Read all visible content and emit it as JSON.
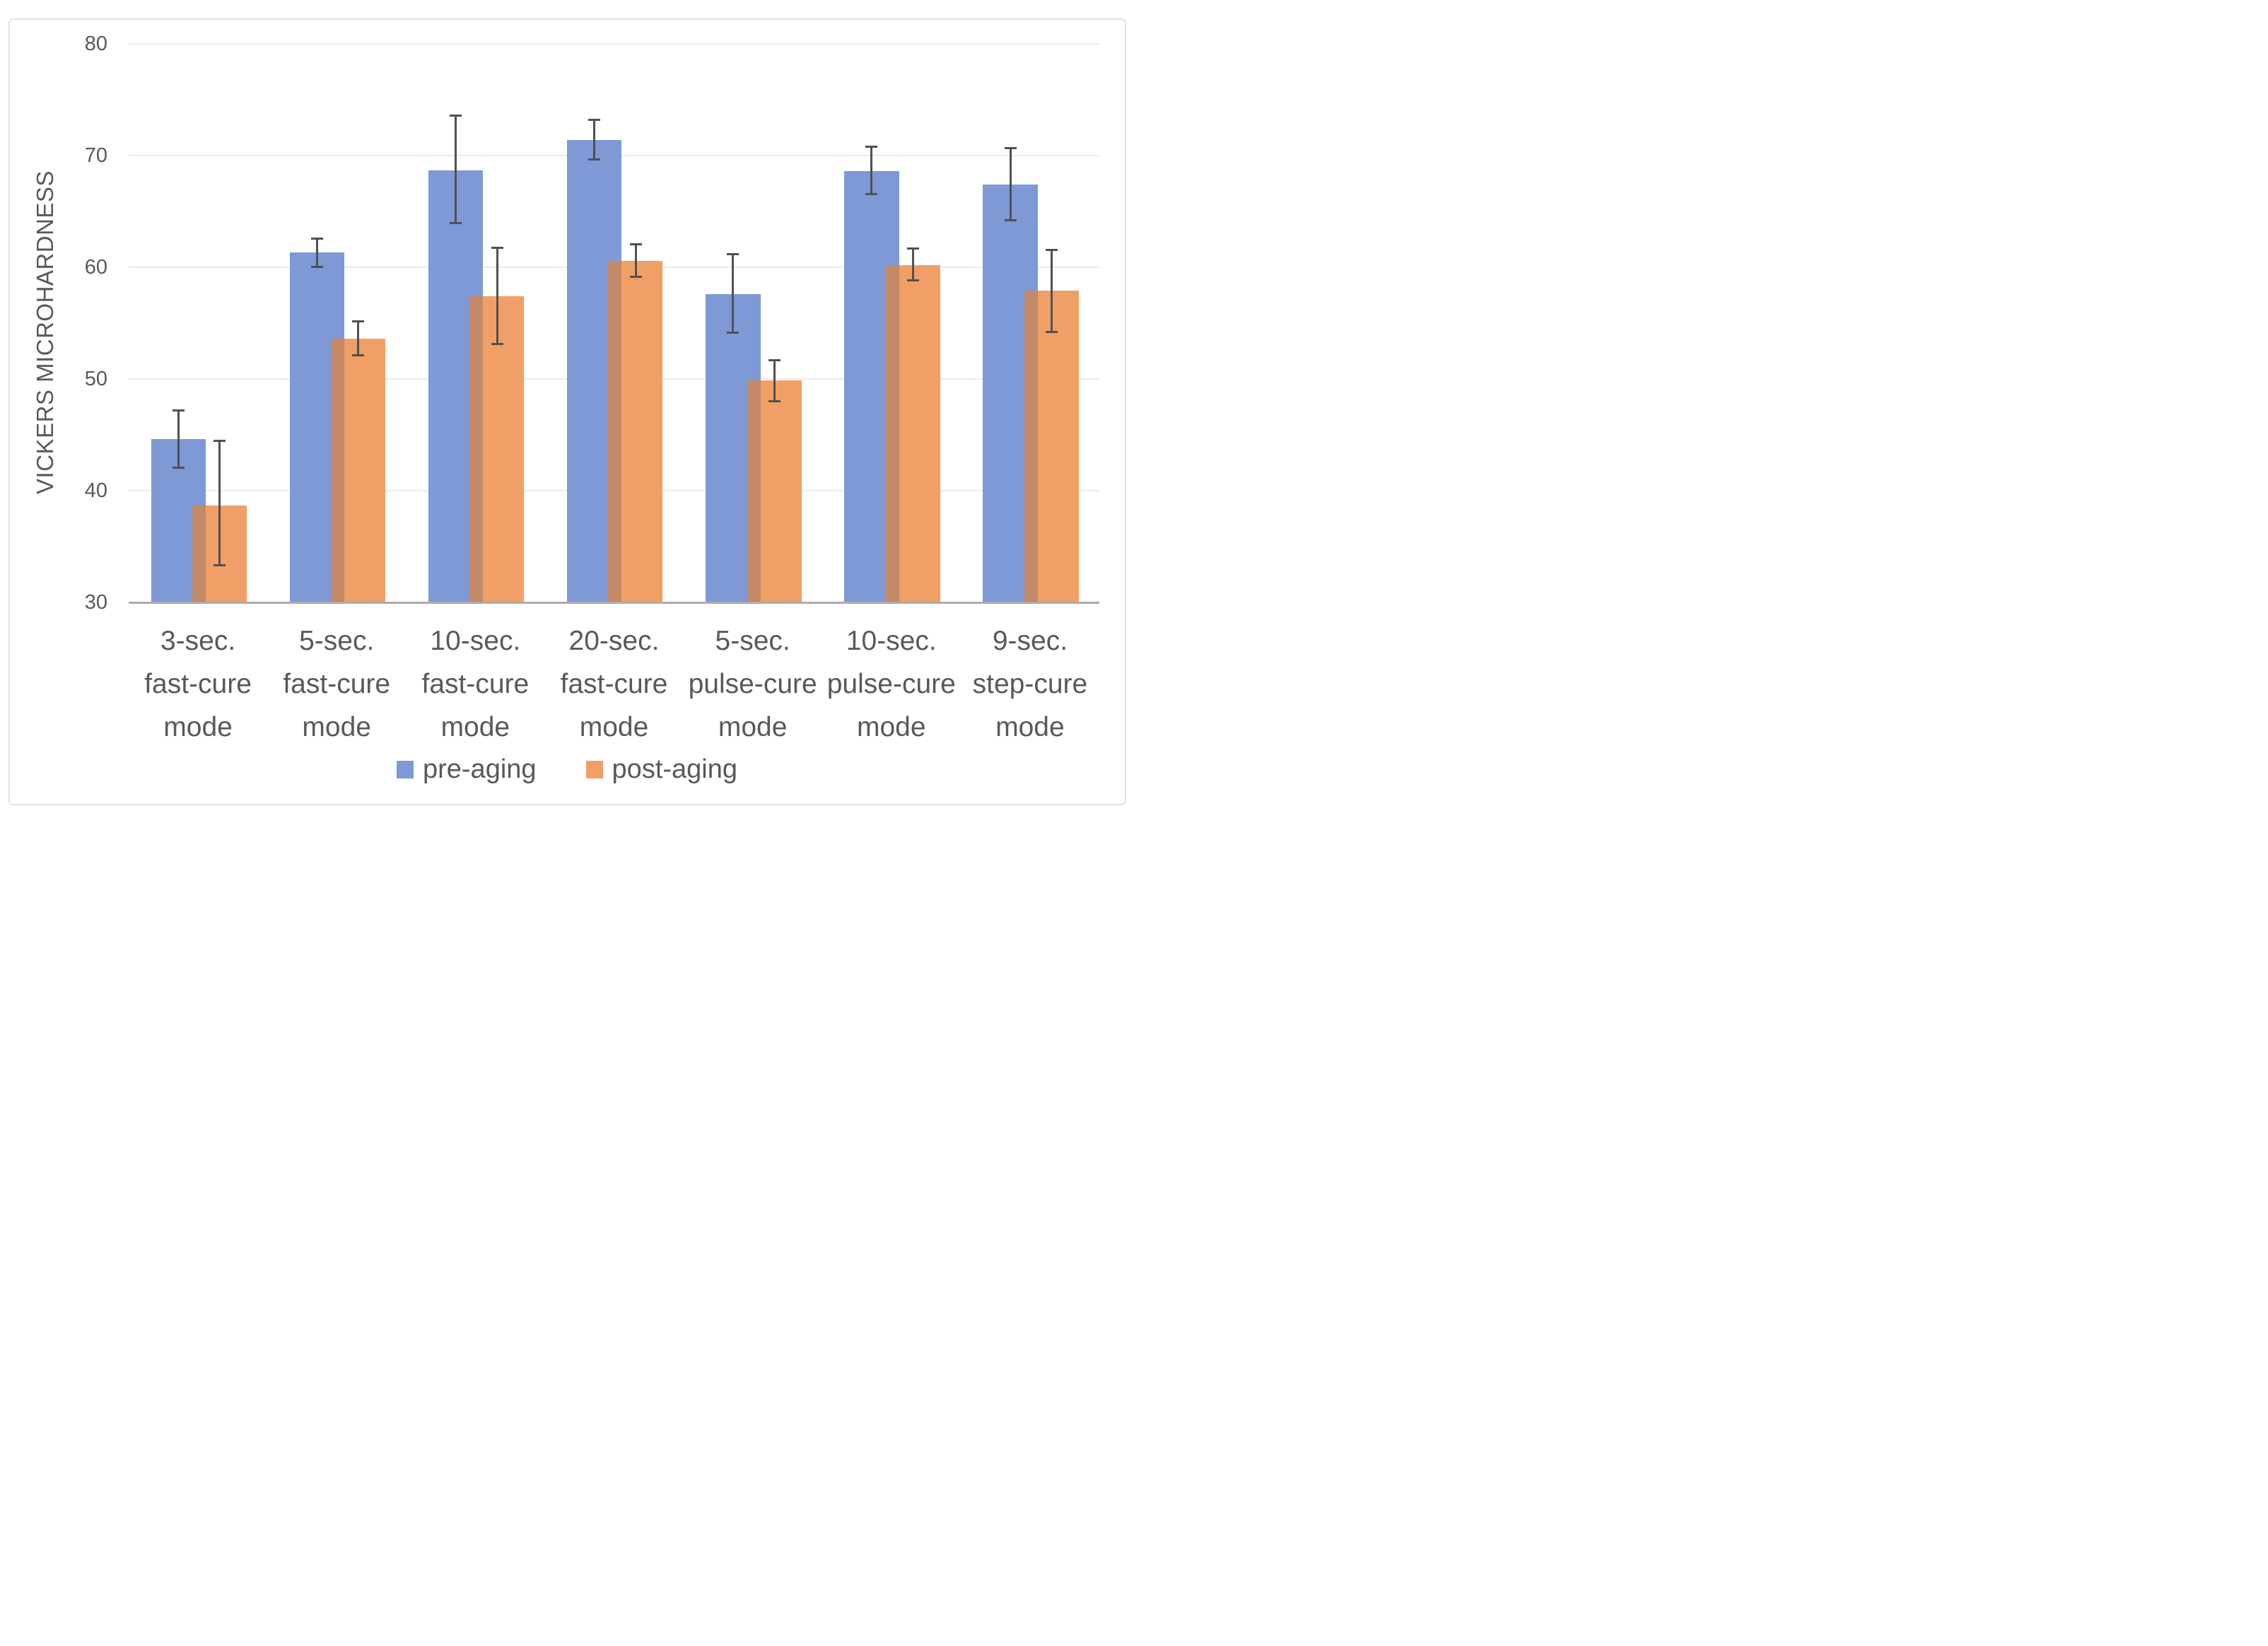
{
  "chart_data": {
    "type": "bar",
    "title": "",
    "xlabel": "",
    "ylabel": "VICKERS MICROHARDNESS",
    "ylim": [
      30,
      80
    ],
    "yticks": [
      30,
      40,
      50,
      60,
      70,
      80
    ],
    "grid": "horizontal gridlines every 10 units",
    "legend_position": "bottom-center",
    "bar_overlap_percent": 25,
    "error_bars": true,
    "categories": [
      "3-sec. fast-cure mode",
      "5-sec. fast-cure mode",
      "10-sec. fast-cure mode",
      "20-sec. fast-cure mode",
      "5-sec. pulse-cure mode",
      "10-sec. pulse-cure mode",
      "9-sec. step-cure mode"
    ],
    "category_label_lines": [
      [
        "3-sec.",
        "fast-cure",
        "mode"
      ],
      [
        "5-sec.",
        "fast-cure",
        "mode"
      ],
      [
        "10-sec.",
        "fast-cure",
        "mode"
      ],
      [
        "20-sec.",
        "fast-cure",
        "mode"
      ],
      [
        "5-sec.",
        "pulse-cure",
        "mode"
      ],
      [
        "10-sec.",
        "pulse-cure",
        "mode"
      ],
      [
        "9-sec.",
        "step-cure",
        "mode"
      ]
    ],
    "series": [
      {
        "name": "pre-aging",
        "color": "#7E99D6",
        "values": [
          44.6,
          61.3,
          68.7,
          71.4,
          57.6,
          68.6,
          67.4
        ],
        "error_minus": [
          2.6,
          1.3,
          4.8,
          1.8,
          3.5,
          2.1,
          3.2
        ],
        "error_plus": [
          2.6,
          1.3,
          4.9,
          1.8,
          3.6,
          2.2,
          3.3
        ]
      },
      {
        "name": "post-aging",
        "color": "#F0A066",
        "values": [
          38.7,
          53.6,
          57.4,
          60.6,
          49.9,
          60.2,
          57.9
        ],
        "error_minus": [
          5.4,
          1.5,
          4.3,
          1.5,
          1.9,
          1.4,
          3.7
        ],
        "error_plus": [
          5.8,
          1.6,
          4.4,
          1.5,
          1.8,
          1.5,
          3.7
        ]
      }
    ],
    "colors": {
      "pre_aging": "#7E99D6",
      "post_aging": "#F0A066",
      "overlap_blend": "#C48966",
      "error_bar": "#515151",
      "gridline": "#ECECEC",
      "axis_line": "#ACACAC",
      "text": "#595959",
      "frame_border": "#E2E2E2",
      "background": "#FFFFFF"
    }
  }
}
